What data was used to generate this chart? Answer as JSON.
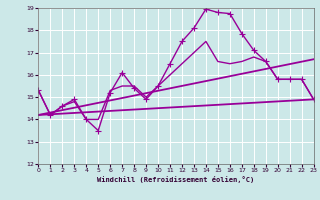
{
  "xlabel": "Windchill (Refroidissement éolien,°C)",
  "xlim": [
    0,
    23
  ],
  "ylim": [
    12,
    19
  ],
  "xticks": [
    0,
    1,
    2,
    3,
    4,
    5,
    6,
    7,
    8,
    9,
    10,
    11,
    12,
    13,
    14,
    15,
    16,
    17,
    18,
    19,
    20,
    21,
    22,
    23
  ],
  "yticks": [
    12,
    13,
    14,
    15,
    16,
    17,
    18,
    19
  ],
  "background_color": "#cce8e8",
  "line_color": "#990099",
  "grid_color": "#ffffff",
  "lines": [
    {
      "x": [
        0,
        1,
        2,
        3,
        4,
        5,
        6,
        7,
        8,
        9,
        10,
        11,
        12,
        13,
        14,
        15,
        16,
        17,
        18,
        19,
        20,
        21,
        22,
        23
      ],
      "y": [
        15.3,
        14.2,
        14.6,
        14.9,
        14.0,
        13.5,
        15.2,
        16.1,
        15.4,
        14.9,
        15.5,
        16.5,
        17.5,
        18.1,
        18.95,
        18.8,
        18.75,
        17.85,
        17.1,
        16.6,
        15.8,
        15.8,
        15.8,
        14.9
      ],
      "marker": "+",
      "linewidth": 1.0,
      "markersize": 4
    },
    {
      "x": [
        0,
        1,
        2,
        3,
        4,
        5,
        6,
        7,
        8,
        9,
        10,
        11,
        12,
        13,
        14,
        15,
        16,
        17,
        18,
        19,
        20,
        21,
        22,
        23
      ],
      "y": [
        15.3,
        14.2,
        14.6,
        14.8,
        14.0,
        14.0,
        15.3,
        15.5,
        15.5,
        15.0,
        15.5,
        16.0,
        16.5,
        17.0,
        17.5,
        16.6,
        16.5,
        16.6,
        16.8,
        16.6,
        15.8,
        15.8,
        15.8,
        14.9
      ],
      "marker": null,
      "linewidth": 1.0,
      "markersize": 0
    },
    {
      "x": [
        0,
        23
      ],
      "y": [
        14.2,
        16.7
      ],
      "marker": null,
      "linewidth": 1.3,
      "markersize": 0
    },
    {
      "x": [
        0,
        23
      ],
      "y": [
        14.2,
        14.9
      ],
      "marker": null,
      "linewidth": 1.3,
      "markersize": 0
    }
  ]
}
